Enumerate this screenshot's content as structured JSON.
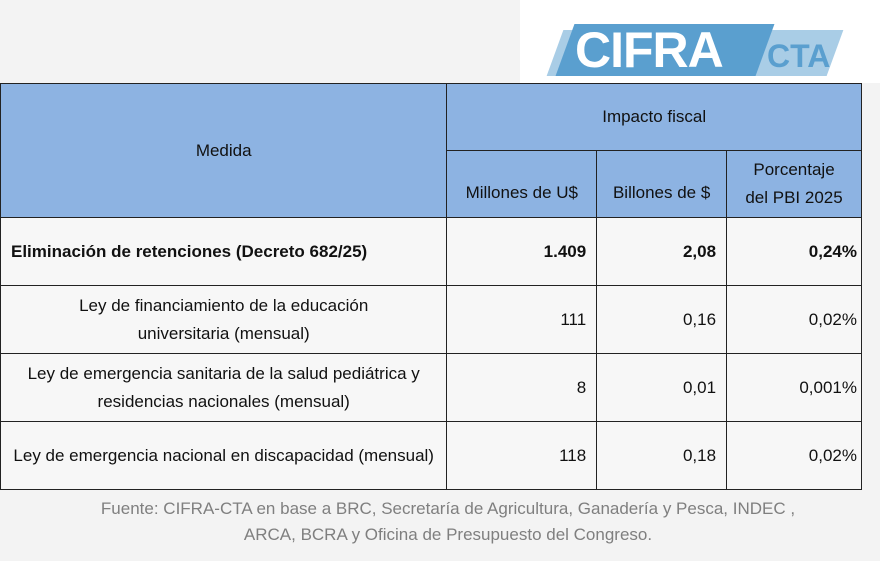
{
  "logo": {
    "main": "CIFRA",
    "sub": "CTA"
  },
  "table": {
    "header_medida": "Medida",
    "header_group": "Impacto fiscal",
    "columns": [
      "Millones de U$",
      "Billones de $",
      "Porcentaje del PBI 2025"
    ],
    "rows": [
      {
        "medida": "Eliminación de retenciones (Decreto 682/25)",
        "usd": "1.409",
        "pesos": "2,08",
        "pbi": "0,24%",
        "bold": true
      },
      {
        "medida": "Ley de financiamiento de la educación universitaria (mensual)",
        "usd": "111",
        "pesos": "0,16",
        "pbi": "0,02%"
      },
      {
        "medida": "Ley de emergencia sanitaria de la salud pediátrica y residencias nacionales (mensual)",
        "usd": "8",
        "pesos": "0,01",
        "pbi": "0,001%"
      },
      {
        "medida": "Ley de emergencia nacional en discapacidad (mensual)",
        "usd": "118",
        "pesos": "0,18",
        "pbi": "0,02%"
      }
    ]
  },
  "footer": {
    "line1": "Fuente: CIFRA-CTA en base a BRC, Secretaría de Agricultura, Ganadería y Pesca, INDEC ,",
    "line2": "ARCA, BCRA y Oficina de Presupuesto del Congreso."
  }
}
